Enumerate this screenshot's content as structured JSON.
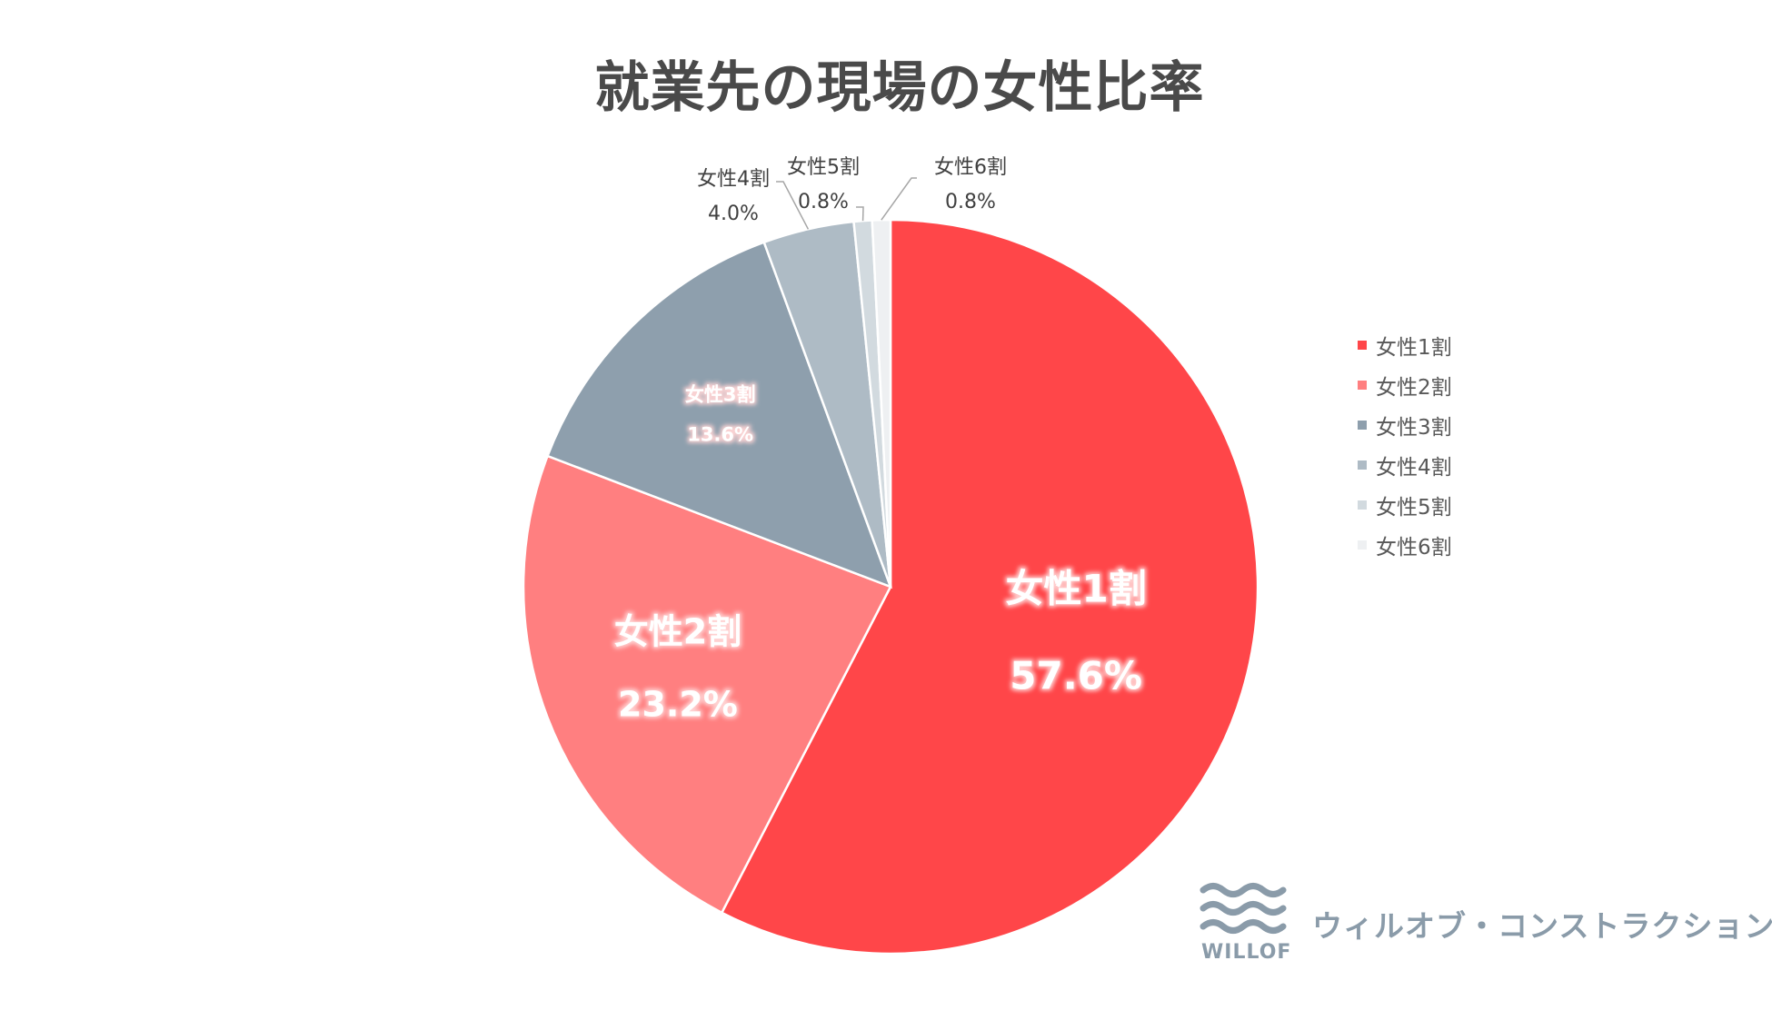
{
  "chart_data": {
    "type": "pie",
    "title": "就業先の現場の女性比率",
    "categories": [
      "女性1割",
      "女性2割",
      "女性3割",
      "女性4割",
      "女性5割",
      "女性6割"
    ],
    "values": [
      57.6,
      23.2,
      13.6,
      4.0,
      0.8,
      0.8
    ],
    "value_labels": [
      "57.6%",
      "23.2%",
      "13.6%",
      "4.0%",
      "0.8%",
      "0.8%"
    ],
    "colors": [
      "#ff4649",
      "#ff7f80",
      "#8e9fad",
      "#aebbc5",
      "#d2dadf",
      "#eef0f2"
    ],
    "start_angle_deg": 0,
    "direction": "clockwise",
    "legend_position": "right"
  },
  "brand": {
    "name": "ウィルオブ・コンストラクション",
    "logo_word": "WILLOF",
    "color": "#8a9ba9"
  }
}
